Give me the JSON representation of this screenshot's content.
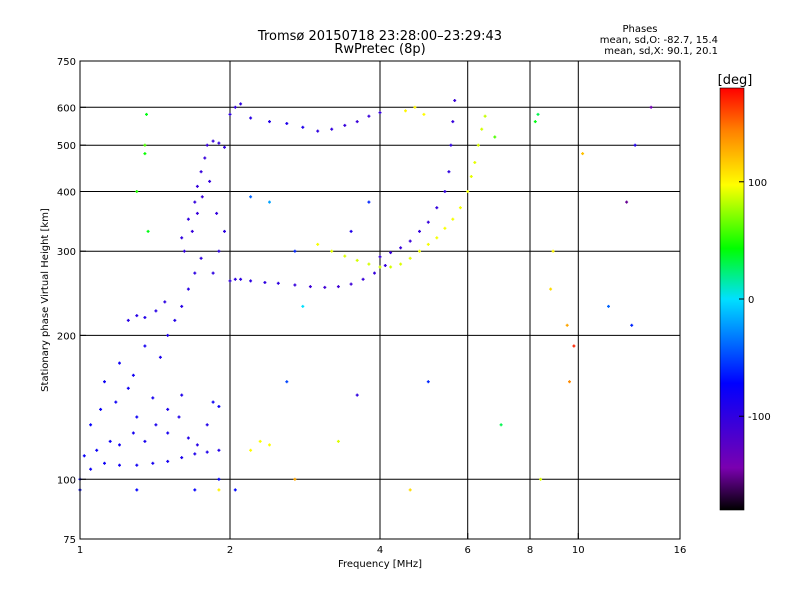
{
  "chart_data": {
    "type": "scatter",
    "title": "Tromsø 20150718 23:28:00–23:29:43",
    "subtitle": "RwPretec (8p)",
    "xlabel": "Frequency [MHz]",
    "ylabel": "Stationary phase Virtual Height [km]",
    "x_scale": "log",
    "y_scale": "log",
    "xlim": [
      1,
      16
    ],
    "ylim": [
      75,
      750
    ],
    "x_ticks": [
      1,
      2,
      4,
      6,
      8,
      10,
      16
    ],
    "x_tick_labels": [
      "1",
      "2",
      "4",
      "6",
      "8",
      "10",
      "16"
    ],
    "y_ticks": [
      75,
      100,
      200,
      300,
      400,
      500,
      600,
      750
    ],
    "y_tick_labels": [
      "75",
      "100",
      "200",
      "300",
      "400",
      "500",
      "600",
      "750"
    ],
    "grid": true,
    "info": {
      "heading": "Phases",
      "line_o": "mean, sd,O:  -82.7, 15.4",
      "line_x": "mean, sd,X:  90.1, 20.1"
    },
    "colorbar": {
      "label": "[deg]",
      "min": -180,
      "max": 180,
      "ticks": [
        100,
        0,
        -100
      ],
      "tick_labels": [
        "100",
        "0",
        "-100"
      ]
    },
    "series": [
      {
        "mode": "O",
        "points": [
          [
            1.0,
            100,
            -75
          ],
          [
            1.05,
            105,
            -80
          ],
          [
            1.12,
            108,
            -80
          ],
          [
            1.2,
            107,
            -82
          ],
          [
            1.3,
            107,
            -82
          ],
          [
            1.4,
            108,
            -85
          ],
          [
            1.5,
            109,
            -85
          ],
          [
            1.6,
            111,
            -88
          ],
          [
            1.7,
            113,
            -90
          ],
          [
            1.8,
            114,
            -90
          ],
          [
            1.9,
            115,
            -92
          ],
          [
            1.02,
            112,
            -78
          ],
          [
            1.08,
            115,
            -78
          ],
          [
            1.15,
            120,
            -80
          ],
          [
            1.2,
            118,
            -82
          ],
          [
            1.28,
            125,
            -84
          ],
          [
            1.35,
            120,
            -86
          ],
          [
            1.42,
            130,
            -88
          ],
          [
            1.5,
            125,
            -86
          ],
          [
            1.58,
            135,
            -90
          ],
          [
            1.65,
            122,
            -92
          ],
          [
            1.72,
            118,
            -95
          ],
          [
            1.8,
            130,
            -92
          ],
          [
            1.05,
            130,
            -75
          ],
          [
            1.1,
            140,
            -78
          ],
          [
            1.18,
            145,
            -80
          ],
          [
            1.25,
            155,
            -82
          ],
          [
            1.3,
            135,
            -80
          ],
          [
            1.4,
            148,
            -85
          ],
          [
            1.5,
            140,
            -88
          ],
          [
            1.6,
            150,
            -90
          ],
          [
            1.85,
            145,
            -78
          ],
          [
            1.9,
            142,
            -78
          ],
          [
            1.12,
            160,
            -80
          ],
          [
            1.2,
            175,
            -80
          ],
          [
            1.28,
            165,
            -82
          ],
          [
            1.35,
            190,
            -85
          ],
          [
            1.45,
            180,
            -88
          ],
          [
            1.5,
            200,
            -90
          ],
          [
            1.55,
            215,
            -92
          ],
          [
            1.6,
            230,
            -95
          ],
          [
            1.65,
            250,
            -95
          ],
          [
            1.7,
            270,
            -98
          ],
          [
            1.75,
            290,
            -100
          ],
          [
            1.25,
            215,
            -95
          ],
          [
            1.3,
            220,
            -95
          ],
          [
            1.35,
            218,
            -92
          ],
          [
            1.42,
            225,
            -95
          ],
          [
            1.48,
            235,
            -98
          ],
          [
            1.6,
            320,
            -100
          ],
          [
            1.65,
            350,
            -100
          ],
          [
            1.7,
            380,
            -102
          ],
          [
            1.72,
            410,
            -104
          ],
          [
            1.75,
            440,
            -104
          ],
          [
            1.78,
            470,
            -105
          ],
          [
            1.8,
            500,
            -105
          ],
          [
            1.85,
            510,
            -104
          ],
          [
            1.9,
            505,
            -102
          ],
          [
            1.95,
            495,
            -100
          ],
          [
            1.62,
            300,
            -102
          ],
          [
            1.68,
            330,
            -104
          ],
          [
            1.72,
            360,
            -105
          ],
          [
            1.76,
            390,
            -106
          ],
          [
            1.82,
            420,
            -104
          ],
          [
            1.88,
            360,
            -102
          ],
          [
            1.9,
            300,
            -100
          ],
          [
            1.85,
            270,
            -98
          ],
          [
            1.95,
            330,
            -98
          ],
          [
            2.0,
            260,
            -102
          ],
          [
            2.05,
            262,
            -100
          ],
          [
            2.1,
            262,
            -98
          ],
          [
            2.2,
            260,
            -98
          ],
          [
            2.35,
            258,
            -100
          ],
          [
            2.5,
            257,
            -100
          ],
          [
            2.7,
            255,
            -104
          ],
          [
            2.9,
            253,
            -108
          ],
          [
            3.1,
            252,
            -110
          ],
          [
            3.3,
            253,
            -110
          ],
          [
            3.5,
            256,
            -108
          ],
          [
            3.7,
            262,
            -106
          ],
          [
            3.9,
            270,
            -104
          ],
          [
            4.1,
            280,
            -104
          ],
          [
            2.0,
            580,
            -100
          ],
          [
            2.05,
            600,
            -102
          ],
          [
            2.1,
            610,
            -98
          ],
          [
            2.2,
            570,
            -96
          ],
          [
            2.4,
            560,
            -94
          ],
          [
            2.6,
            555,
            -90
          ],
          [
            2.8,
            545,
            -90
          ],
          [
            3.0,
            535,
            -100
          ],
          [
            3.2,
            540,
            -102
          ],
          [
            3.4,
            550,
            -104
          ],
          [
            3.6,
            560,
            -106
          ],
          [
            3.8,
            575,
            -106
          ],
          [
            4.0,
            585,
            -104
          ],
          [
            4.0,
            292,
            -105
          ],
          [
            4.2,
            298,
            -106
          ],
          [
            4.4,
            305,
            -106
          ],
          [
            4.6,
            315,
            -106
          ],
          [
            4.8,
            330,
            -104
          ],
          [
            5.0,
            345,
            -104
          ],
          [
            5.2,
            370,
            -102
          ],
          [
            5.4,
            400,
            -102
          ],
          [
            5.5,
            440,
            -100
          ],
          [
            5.55,
            500,
            -100
          ],
          [
            5.6,
            560,
            -104
          ],
          [
            5.65,
            620,
            -106
          ],
          [
            1.0,
            95,
            -70
          ],
          [
            1.3,
            95,
            -72
          ],
          [
            1.7,
            95,
            -75
          ],
          [
            1.9,
            100,
            -72
          ],
          [
            2.05,
            95,
            -70
          ]
        ]
      },
      {
        "mode": "X",
        "points": [
          [
            3.0,
            310,
            95
          ],
          [
            3.2,
            300,
            92
          ],
          [
            3.4,
            293,
            90
          ],
          [
            3.6,
            287,
            88
          ],
          [
            3.8,
            282,
            88
          ],
          [
            4.0,
            278,
            88
          ],
          [
            4.2,
            278,
            88
          ],
          [
            4.4,
            282,
            90
          ],
          [
            4.6,
            290,
            92
          ],
          [
            4.8,
            300,
            94
          ],
          [
            5.0,
            310,
            95
          ],
          [
            5.2,
            320,
            95
          ],
          [
            5.4,
            335,
            96
          ],
          [
            5.6,
            350,
            95
          ],
          [
            5.8,
            370,
            95
          ],
          [
            6.0,
            400,
            94
          ],
          [
            6.1,
            430,
            92
          ],
          [
            6.2,
            460,
            92
          ],
          [
            6.3,
            500,
            90
          ],
          [
            6.4,
            540,
            88
          ],
          [
            6.5,
            575,
            85
          ],
          [
            4.5,
            590,
            100
          ],
          [
            4.7,
            600,
            100
          ],
          [
            4.9,
            580,
            98
          ],
          [
            2.2,
            115,
            98
          ],
          [
            2.3,
            120,
            96
          ],
          [
            2.4,
            118,
            98
          ],
          [
            1.9,
            95,
            102
          ],
          [
            3.3,
            120,
            90
          ],
          [
            6.8,
            520,
            60
          ]
        ]
      },
      {
        "mode": "noise",
        "points": [
          [
            1.35,
            480,
            45
          ],
          [
            1.35,
            500,
            60
          ],
          [
            1.36,
            580,
            40
          ],
          [
            1.3,
            400,
            50
          ],
          [
            1.37,
            330,
            40
          ],
          [
            2.2,
            390,
            -40
          ],
          [
            2.4,
            380,
            -20
          ],
          [
            2.7,
            300,
            -60
          ],
          [
            3.5,
            330,
            -90
          ],
          [
            3.8,
            380,
            -60
          ],
          [
            8.2,
            560,
            40
          ],
          [
            8.3,
            580,
            30
          ],
          [
            8.8,
            250,
            110
          ],
          [
            8.9,
            300,
            100
          ],
          [
            9.5,
            210,
            130
          ],
          [
            9.6,
            160,
            140
          ],
          [
            9.8,
            190,
            170
          ],
          [
            10.2,
            480,
            120
          ],
          [
            11.5,
            230,
            -40
          ],
          [
            12.5,
            380,
            -150
          ],
          [
            12.8,
            210,
            -60
          ],
          [
            13.0,
            500,
            -90
          ],
          [
            14.0,
            600,
            -140
          ],
          [
            8.4,
            100,
            90
          ],
          [
            7.0,
            130,
            30
          ],
          [
            5.0,
            160,
            -60
          ],
          [
            3.6,
            150,
            -100
          ],
          [
            4.6,
            95,
            110
          ],
          [
            2.7,
            100,
            130
          ],
          [
            2.8,
            230,
            0
          ],
          [
            2.6,
            160,
            -50
          ]
        ]
      }
    ]
  }
}
